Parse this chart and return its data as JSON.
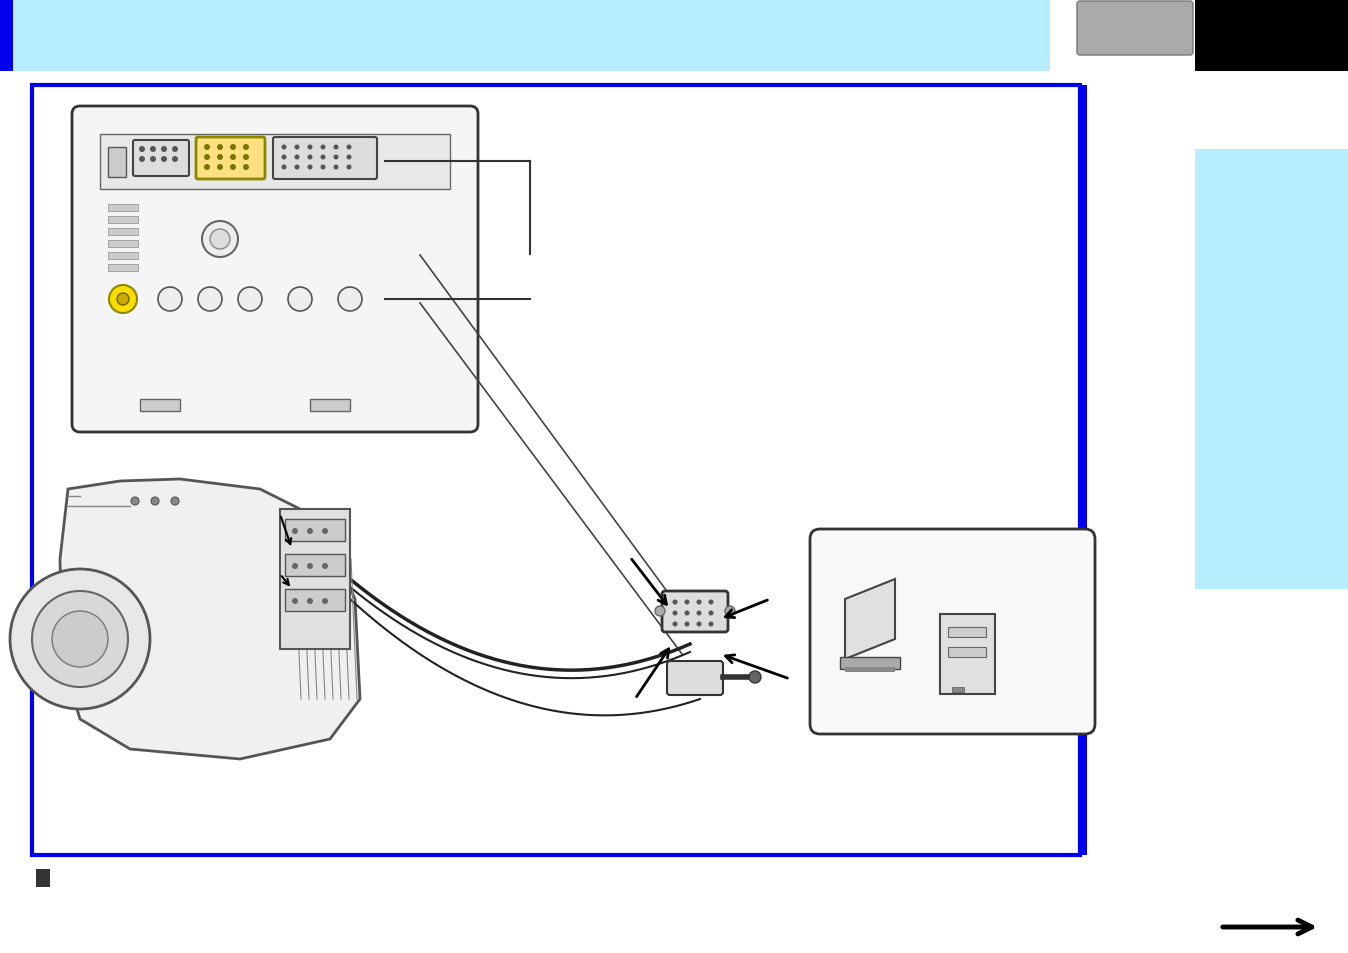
{
  "bg_color": "#ffffff",
  "header_lightblue": "#b8ecff",
  "blue_color": "#0000ee",
  "black": "#000000",
  "gray_tab": "#aaaaaa",
  "dark_gray": "#444444",
  "light_gray": "#dddddd",
  "mid_gray": "#888888",
  "panel_fill": "#f2f2f2",
  "sidebar_blue": "#b8ecff",
  "yellow": "#ffdd00",
  "line_color": "#555555",
  "cable_color": "#222222"
}
